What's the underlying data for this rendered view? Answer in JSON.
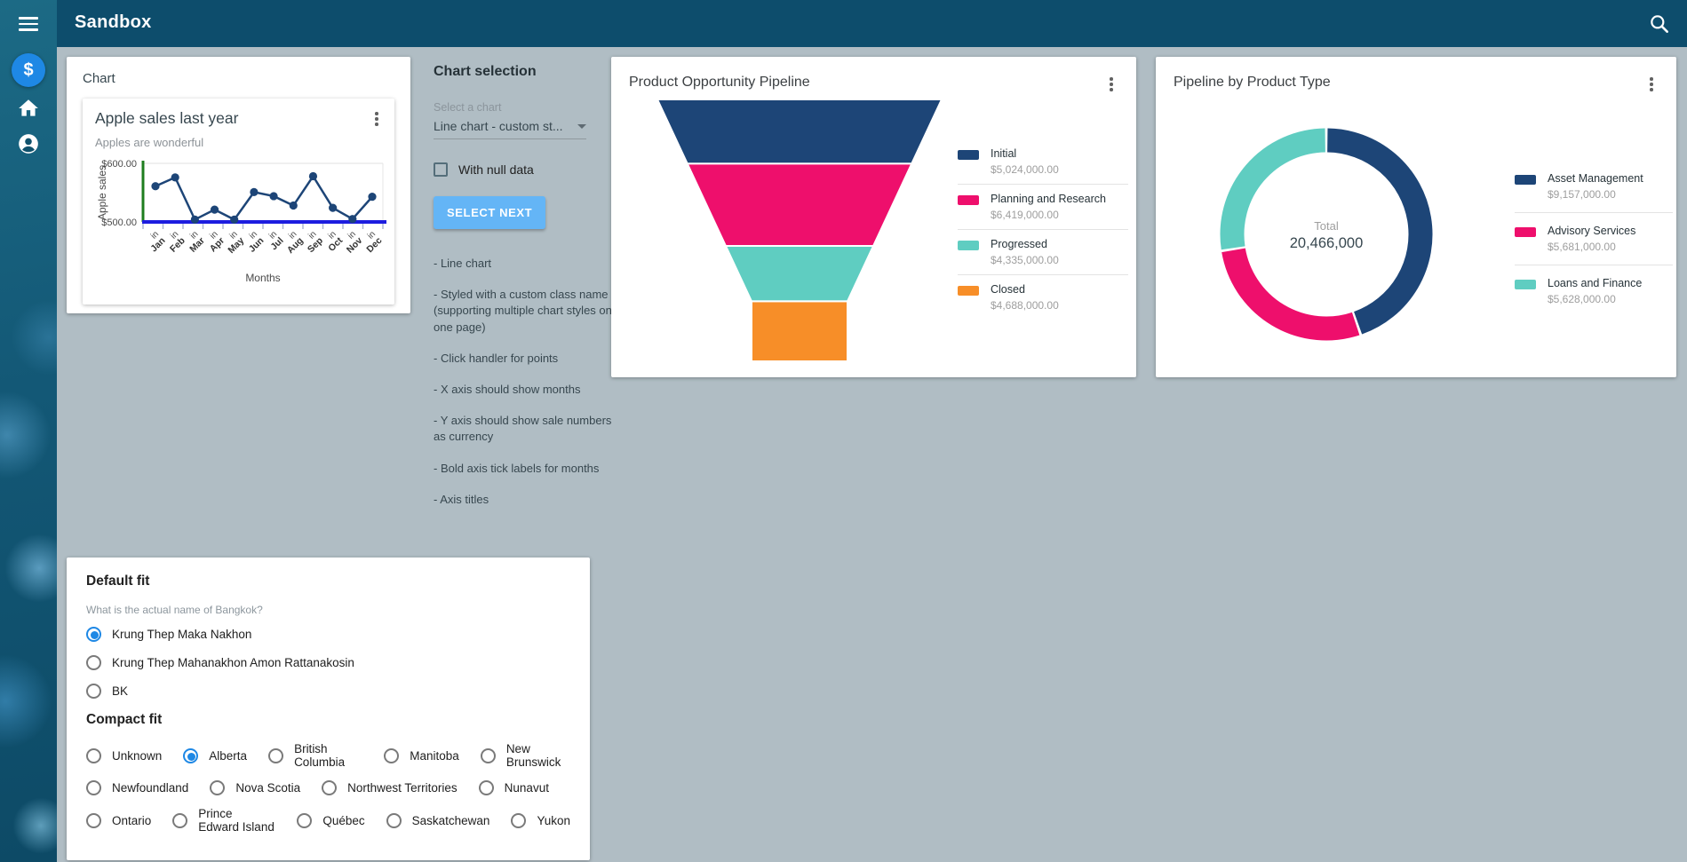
{
  "theme": {
    "navbar_bg": "#0d4d6c",
    "page_bg": "#b0bdc4",
    "accent_blue": "#1e88e5",
    "button_blue": "#64b5f6",
    "navy": "#1d4577",
    "pink": "#ee0f6c",
    "teal": "#5fcdc1",
    "orange": "#f78e28",
    "y_axis_green": "#1e7d1e",
    "x_axis_blue": "#1d1de0"
  },
  "navbar": {
    "title": "Sandbox"
  },
  "chart_panel": {
    "section_title": "Chart"
  },
  "chart_selection": {
    "title": "Chart selection",
    "select_label": "Select a chart",
    "select_value": "Line chart - custom st...",
    "checkbox_label": "With null data",
    "checkbox_checked": false,
    "button_label": "SELECT NEXT",
    "notes": [
      "- Line chart",
      "- Styled with a custom class name\n(supporting multiple chart styles on one page)",
      "- Click handler for points",
      "- X axis should show months",
      "- Y axis should show sale numbers as currency",
      "- Bold axis tick labels for months",
      "- Axis titles"
    ]
  },
  "chart_data": [
    {
      "id": "apple-sales",
      "type": "line",
      "title": "Apple sales last year",
      "subtitle": "Apples are wonderful",
      "xlabel": "Months",
      "ylabel": "Apple sales",
      "x_tick_prefix": "in",
      "categories": [
        "Jan",
        "Feb",
        "Mar",
        "Apr",
        "May",
        "Jun",
        "Jul",
        "Aug",
        "Sep",
        "Oct",
        "Nov",
        "Dec"
      ],
      "values": [
        561,
        576,
        504,
        521,
        504,
        551,
        544,
        528,
        578,
        524,
        505,
        543
      ],
      "ylim": [
        500,
        600
      ],
      "y_ticks": [
        "$500.00",
        "$600.00"
      ],
      "gridline_top": true,
      "line_color": "#1d4577",
      "y_axis_color": "#1e7d1e",
      "x_axis_color": "#1d1de0"
    },
    {
      "id": "product-opportunity-pipeline",
      "type": "funnel",
      "title": "Product Opportunity Pipeline",
      "stages": [
        {
          "label": "Initial",
          "value": 5024000,
          "value_formatted": "$5,024,000.00",
          "color": "#1d4577"
        },
        {
          "label": "Planning and Research",
          "value": 6419000,
          "value_formatted": "$6,419,000.00",
          "color": "#ee0f6c"
        },
        {
          "label": "Progressed",
          "value": 4335000,
          "value_formatted": "$4,335,000.00",
          "color": "#5fcdc1"
        },
        {
          "label": "Closed",
          "value": 4688000,
          "value_formatted": "$4,688,000.00",
          "color": "#f78e28"
        }
      ]
    },
    {
      "id": "pipeline-by-product-type",
      "type": "donut",
      "title": "Pipeline by Product Type",
      "center_label": "Total",
      "center_value": "20,466,000",
      "total": 20466000,
      "slices": [
        {
          "label": "Asset Management",
          "value": 9157000,
          "value_formatted": "$9,157,000.00",
          "color": "#1d4577"
        },
        {
          "label": "Advisory Services",
          "value": 5681000,
          "value_formatted": "$5,681,000.00",
          "color": "#ee0f6c"
        },
        {
          "label": "Loans and Finance",
          "value": 5628000,
          "value_formatted": "$5,628,000.00",
          "color": "#5fcdc1"
        }
      ]
    }
  ],
  "quiz": {
    "default_fit": {
      "title": "Default fit",
      "question": "What is the actual name of Bangkok?",
      "options": [
        "Krung Thep Maka Nakhon",
        "Krung Thep Mahanakhon Amon Rattanakosin",
        "BK"
      ],
      "selected_index": 0
    },
    "compact_fit": {
      "title": "Compact fit",
      "rows": [
        [
          "Unknown",
          "Alberta",
          "British Columbia",
          "Manitoba",
          "New Brunswick"
        ],
        [
          "Newfoundland",
          "Nova Scotia",
          "Northwest Territories",
          "Nunavut"
        ],
        [
          "Ontario",
          "Prince Edward Island",
          "Québec",
          "Saskatchewan",
          "Yukon"
        ]
      ],
      "selected": "Alberta"
    }
  }
}
